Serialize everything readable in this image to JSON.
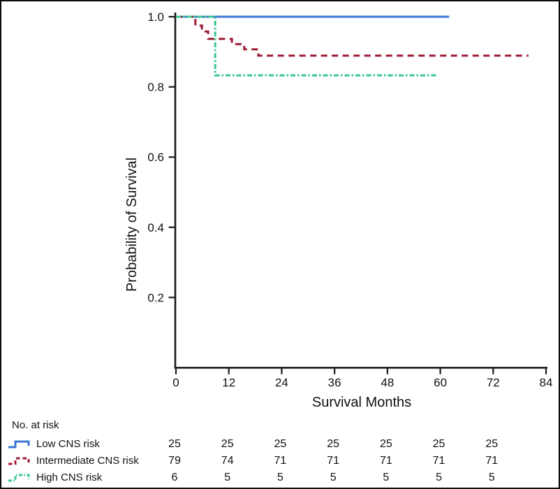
{
  "chart_data": {
    "type": "line",
    "subtype": "kaplan-meier-step",
    "title": "",
    "xlabel": "Survival Months",
    "ylabel": "Probability of Survival",
    "xlim": [
      0,
      84
    ],
    "ylim": [
      0,
      1.0
    ],
    "xticks": [
      0,
      12,
      24,
      36,
      48,
      60,
      72,
      84
    ],
    "xtick_labels": [
      "0",
      "12",
      "24",
      "36",
      "48",
      "60",
      "72",
      "84"
    ],
    "yticks": [
      1.0,
      0.8,
      0.6,
      0.4,
      0.2
    ],
    "ytick_labels": [
      "1.0",
      "0.8",
      "0.6",
      "0.4",
      "0.2"
    ],
    "grid": false,
    "legend_position": "below-left-with-risk-table",
    "axis_color": "#1a1a1a",
    "series": [
      {
        "name": "Low CNS risk",
        "color": "#3b77d4",
        "style": "solid",
        "points": [
          [
            0,
            1.0
          ],
          [
            62,
            1.0
          ]
        ]
      },
      {
        "name": "Intermediate CNS risk",
        "color": "#9c1b33",
        "style": "dashed",
        "points": [
          [
            0,
            1.0
          ],
          [
            4.4,
            1.0
          ],
          [
            4.4,
            0.975
          ],
          [
            5.9,
            0.975
          ],
          [
            5.9,
            0.958
          ],
          [
            7.3,
            0.958
          ],
          [
            7.3,
            0.937
          ],
          [
            12.7,
            0.937
          ],
          [
            12.7,
            0.922
          ],
          [
            15.5,
            0.922
          ],
          [
            15.5,
            0.907
          ],
          [
            18.7,
            0.907
          ],
          [
            18.7,
            0.889
          ],
          [
            80,
            0.889
          ]
        ]
      },
      {
        "name": "High CNS risk",
        "color": "#37c78d",
        "style": "dashdot",
        "points": [
          [
            0,
            1.0
          ],
          [
            8.9,
            1.0
          ],
          [
            8.9,
            0.833
          ],
          [
            59,
            0.833
          ]
        ]
      }
    ]
  },
  "at_risk": {
    "label": "No. at risk",
    "months": [
      0,
      12,
      24,
      36,
      48,
      60,
      72
    ],
    "rows": [
      {
        "name": "Low CNS risk",
        "counts": [
          25,
          25,
          25,
          25,
          25,
          25,
          25
        ]
      },
      {
        "name": "Intermediate CNS risk",
        "counts": [
          79,
          74,
          71,
          71,
          71,
          71,
          71
        ]
      },
      {
        "name": "High CNS risk",
        "counts": [
          6,
          5,
          5,
          5,
          5,
          5,
          5
        ]
      }
    ]
  }
}
